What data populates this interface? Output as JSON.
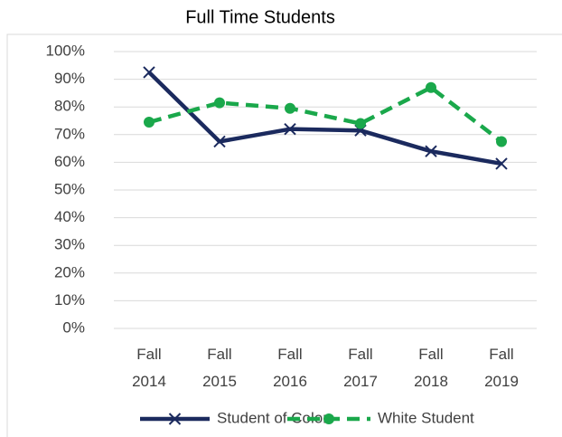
{
  "chart_data": {
    "type": "line",
    "title": "Full Time Students",
    "categories": [
      "Fall 2014",
      "Fall 2015",
      "Fall 2016",
      "Fall 2017",
      "Fall 2018",
      "Fall 2019"
    ],
    "series": [
      {
        "name": "Student of Color",
        "color": "#1b2a5e",
        "values": [
          92.5,
          67.5,
          72,
          71.5,
          64,
          59.5
        ]
      },
      {
        "name": "White Student",
        "color": "#1aa84b",
        "values": [
          74.5,
          81.5,
          79.5,
          74,
          87,
          67.5
        ]
      }
    ],
    "ylim": [
      0,
      100
    ],
    "yticks": [
      {
        "value": 0,
        "label": "0%"
      },
      {
        "value": 10,
        "label": "10%"
      },
      {
        "value": 20,
        "label": "20%"
      },
      {
        "value": 30,
        "label": "30%"
      },
      {
        "value": 40,
        "label": "40%"
      },
      {
        "value": 50,
        "label": "50%"
      },
      {
        "value": 60,
        "label": "60%"
      },
      {
        "value": 70,
        "label": "70%"
      },
      {
        "value": 80,
        "label": "80%"
      },
      {
        "value": 90,
        "label": "90%"
      },
      {
        "value": 100,
        "label": "100%"
      }
    ],
    "grid": true,
    "legend": "bottom"
  }
}
